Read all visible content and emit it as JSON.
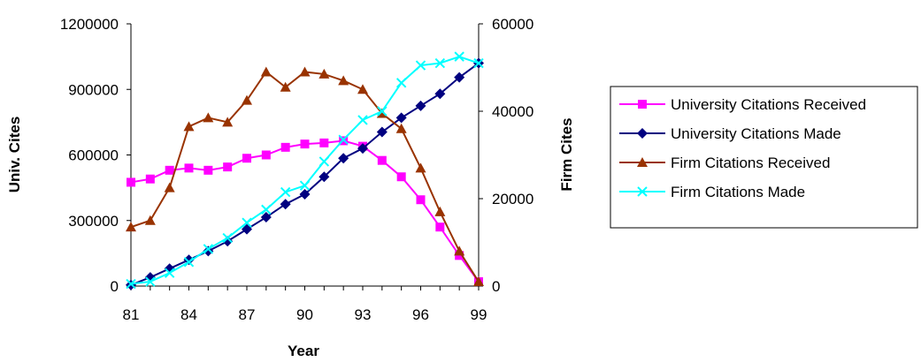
{
  "chart_data": {
    "type": "line",
    "title": "",
    "xlabel": "Year",
    "ylabel_left": "Univ. Cites",
    "ylabel_right": "Firm Cites",
    "x": [
      81,
      82,
      83,
      84,
      85,
      86,
      87,
      88,
      89,
      90,
      91,
      92,
      93,
      94,
      95,
      96,
      97,
      98,
      99
    ],
    "x_tick_labels": [
      "81",
      "84",
      "87",
      "90",
      "93",
      "96",
      "99"
    ],
    "y_left_ticks": [
      "0",
      "300000",
      "600000",
      "900000",
      "1200000"
    ],
    "y_right_ticks": [
      "0",
      "20000",
      "40000",
      "60000"
    ],
    "ylim_left": [
      0,
      1200000
    ],
    "ylim_right": [
      0,
      60000
    ],
    "legend_position": "right",
    "grid": false,
    "series": [
      {
        "name": "University Citations Received",
        "axis": "left",
        "color": "#ff00ff",
        "marker": "square",
        "values": [
          475000,
          490000,
          530000,
          540000,
          530000,
          545000,
          585000,
          600000,
          635000,
          650000,
          655000,
          665000,
          640000,
          575000,
          500000,
          395000,
          270000,
          140000,
          20000
        ]
      },
      {
        "name": "University Citations Made",
        "axis": "left",
        "color": "#000080",
        "marker": "diamond",
        "values": [
          5000,
          40000,
          80000,
          120000,
          160000,
          205000,
          260000,
          315000,
          375000,
          420000,
          500000,
          585000,
          630000,
          705000,
          770000,
          825000,
          880000,
          955000,
          1020000
        ]
      },
      {
        "name": "Firm Citations Received",
        "axis": "right",
        "color": "#993300",
        "marker": "triangle",
        "values": [
          13500,
          15000,
          22500,
          36500,
          38500,
          37500,
          42500,
          49000,
          45500,
          49000,
          48500,
          47000,
          45000,
          39500,
          36000,
          27000,
          17000,
          8000,
          1000
        ]
      },
      {
        "name": "Firm Citations Made",
        "axis": "right",
        "color": "#00ffff",
        "marker": "x",
        "values": [
          500,
          1000,
          3000,
          5500,
          8500,
          11000,
          14500,
          17500,
          21500,
          23000,
          28500,
          33500,
          38000,
          40000,
          46500,
          50500,
          51000,
          52500,
          51000
        ]
      }
    ]
  }
}
